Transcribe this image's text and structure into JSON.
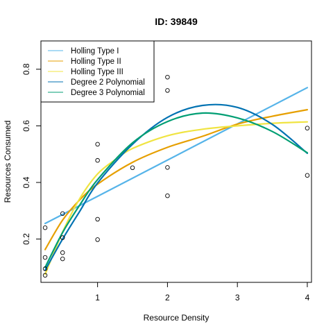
{
  "chart_data": {
    "type": "scatter",
    "title": "ID: 39849",
    "xlabel": "Resource Density",
    "ylabel": "Resources Consumed",
    "xlim": [
      0.19,
      4.06
    ],
    "ylim": [
      0.047,
      0.9
    ],
    "xticks": [
      1,
      2,
      3,
      4
    ],
    "yticks": [
      0.2,
      0.4,
      0.6,
      0.8
    ],
    "grid": false,
    "legend_position": "top-left",
    "points": [
      {
        "x": 0.25,
        "y": 0.24
      },
      {
        "x": 0.25,
        "y": 0.135
      },
      {
        "x": 0.25,
        "y": 0.095
      },
      {
        "x": 0.25,
        "y": 0.072
      },
      {
        "x": 0.5,
        "y": 0.29
      },
      {
        "x": 0.5,
        "y": 0.205
      },
      {
        "x": 0.5,
        "y": 0.152
      },
      {
        "x": 0.5,
        "y": 0.13
      },
      {
        "x": 1.0,
        "y": 0.535
      },
      {
        "x": 1.0,
        "y": 0.478
      },
      {
        "x": 1.0,
        "y": 0.27
      },
      {
        "x": 1.0,
        "y": 0.198
      },
      {
        "x": 1.5,
        "y": 0.452
      },
      {
        "x": 2.0,
        "y": 0.772
      },
      {
        "x": 2.0,
        "y": 0.725
      },
      {
        "x": 2.0,
        "y": 0.453
      },
      {
        "x": 2.0,
        "y": 0.353
      },
      {
        "x": 4.0,
        "y": 0.592
      },
      {
        "x": 4.0,
        "y": 0.425
      }
    ],
    "series": [
      {
        "name": "Holling Type I",
        "color": "#56B4E9",
        "x": [
          0.25,
          0.5,
          1,
          1.5,
          2,
          2.5,
          3,
          3.5,
          4
        ],
        "y": [
          0.255,
          0.287,
          0.351,
          0.415,
          0.479,
          0.543,
          0.607,
          0.671,
          0.735
        ]
      },
      {
        "name": "Holling Type II",
        "color": "#E69F00",
        "x": [
          0.25,
          0.5,
          0.75,
          1,
          1.5,
          2,
          2.5,
          3,
          3.5,
          4
        ],
        "y": [
          0.163,
          0.267,
          0.34,
          0.394,
          0.471,
          0.524,
          0.563,
          0.606,
          0.634,
          0.657
        ]
      },
      {
        "name": "Holling Type III",
        "color": "#F0E442",
        "x": [
          0.25,
          0.5,
          0.75,
          1,
          1.25,
          1.5,
          2,
          2.5,
          3,
          3.5,
          4
        ],
        "y": [
          0.075,
          0.225,
          0.345,
          0.43,
          0.48,
          0.52,
          0.565,
          0.588,
          0.6,
          0.609,
          0.614
        ]
      },
      {
        "name": "Degree 2 Polynomial",
        "color": "#0072B2",
        "x": [
          0.25,
          0.5,
          0.75,
          1,
          1.5,
          2,
          2.5,
          3,
          3.5,
          4
        ],
        "y": [
          0.09,
          0.2,
          0.3,
          0.398,
          0.535,
          0.63,
          0.672,
          0.665,
          0.605,
          0.503
        ]
      },
      {
        "name": "Degree 3 Polynomial",
        "color": "#009E73",
        "x": [
          0.25,
          0.5,
          0.75,
          1,
          1.5,
          2,
          2.5,
          3,
          3.5,
          4
        ],
        "y": [
          0.1,
          0.223,
          0.322,
          0.41,
          0.54,
          0.615,
          0.645,
          0.628,
          0.58,
          0.505
        ]
      }
    ]
  }
}
